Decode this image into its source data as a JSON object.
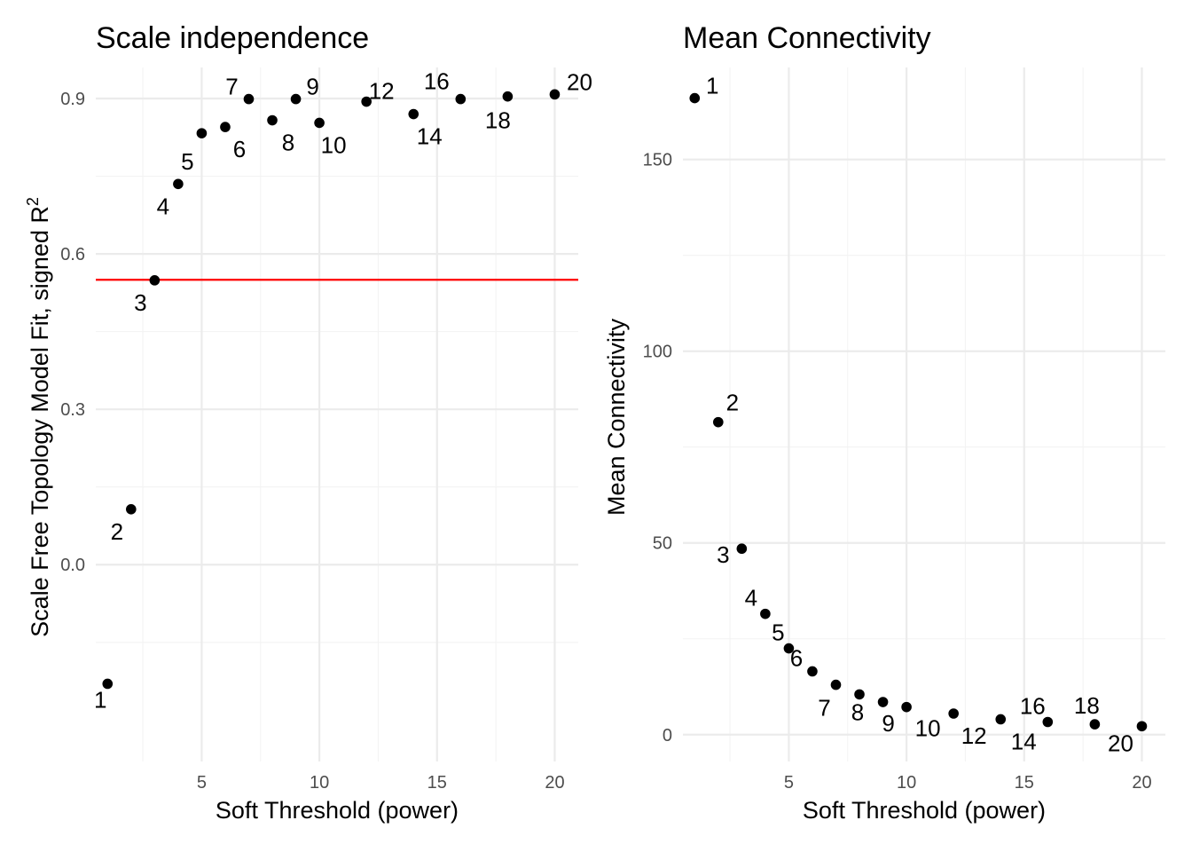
{
  "chart_data": [
    {
      "type": "scatter",
      "title": "Scale independence",
      "xlabel": "Soft Threshold (power)",
      "ylabel": "Scale Free Topology Model Fit, signed R",
      "ylabel_superscript": "2",
      "xlim": [
        0.5,
        21
      ],
      "ylim": [
        -0.38,
        0.96
      ],
      "x_ticks": [
        5,
        10,
        15,
        20
      ],
      "x_tick_labels": [
        "5",
        "10",
        "15",
        "20"
      ],
      "y_ticks": [
        0.0,
        0.3,
        0.6,
        0.9
      ],
      "y_tick_labels": [
        "0.0",
        "0.3",
        "0.6",
        "0.9"
      ],
      "grid": true,
      "reference_line": {
        "y": 0.55,
        "color": "#ff0000"
      },
      "point_color": "#000000",
      "x": [
        1,
        2,
        3,
        4,
        5,
        6,
        7,
        8,
        9,
        10,
        12,
        14,
        16,
        18,
        20
      ],
      "y": [
        -0.23,
        0.107,
        0.549,
        0.735,
        0.833,
        0.845,
        0.899,
        0.858,
        0.899,
        0.853,
        0.894,
        0.87,
        0.899,
        0.904,
        0.908
      ],
      "point_labels": [
        "1",
        "2",
        "3",
        "4",
        "5",
        "6",
        "7",
        "8",
        "9",
        "10",
        "12",
        "14",
        "16",
        "18",
        "20"
      ]
    },
    {
      "type": "scatter",
      "title": "Mean Connectivity",
      "xlabel": "Soft Threshold (power)",
      "ylabel": "Mean Connectivity",
      "xlim": [
        0.5,
        21
      ],
      "ylim": [
        -7,
        174
      ],
      "x_ticks": [
        5,
        10,
        15,
        20
      ],
      "x_tick_labels": [
        "5",
        "10",
        "15",
        "20"
      ],
      "y_ticks": [
        0,
        50,
        100,
        150
      ],
      "y_tick_labels": [
        "0",
        "50",
        "100",
        "150"
      ],
      "grid": true,
      "point_color": "#000000",
      "x": [
        1,
        2,
        3,
        4,
        5,
        6,
        7,
        8,
        9,
        10,
        12,
        14,
        16,
        18,
        20
      ],
      "y": [
        166,
        81.5,
        48.5,
        31.5,
        22.5,
        16.5,
        13,
        10.5,
        8.5,
        7.2,
        5.5,
        4,
        3.3,
        2.7,
        2.2
      ],
      "point_labels": [
        "1",
        "2",
        "3",
        "4",
        "5",
        "6",
        "7",
        "8",
        "9",
        "10",
        "12",
        "14",
        "16",
        "18",
        "20"
      ]
    }
  ]
}
